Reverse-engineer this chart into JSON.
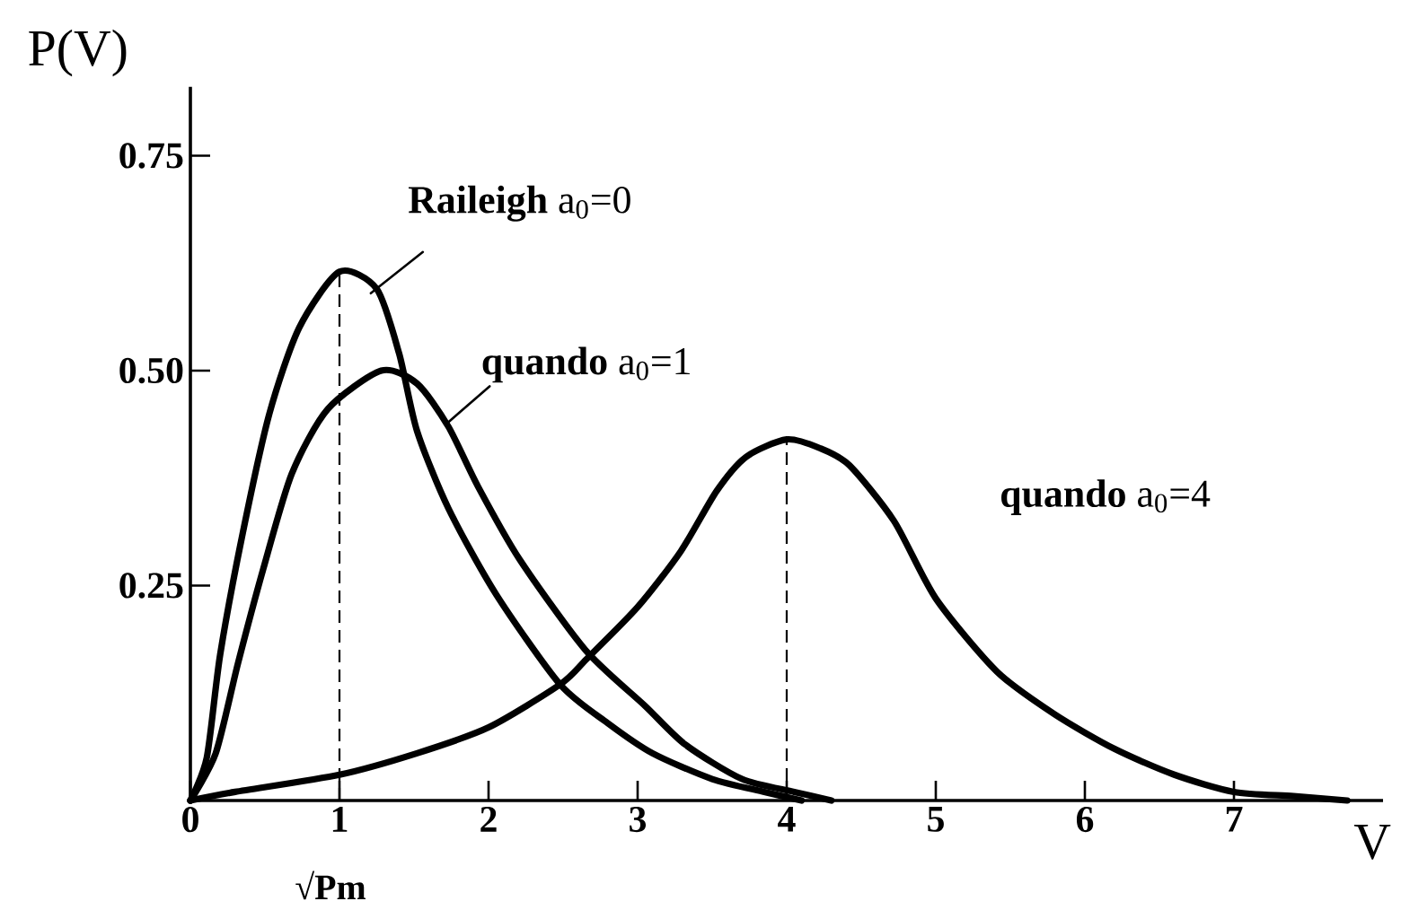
{
  "chart_data": {
    "type": "line",
    "xlabel": "V",
    "ylabel": "P(V)",
    "xlim": [
      0,
      8
    ],
    "ylim": [
      0,
      0.83
    ],
    "xticks": [
      0,
      1,
      2,
      3,
      4,
      5,
      6,
      7
    ],
    "yticks": [
      0.25,
      {
        "value": 0.5,
        "label": "0.50"
      },
      0.75
    ],
    "series": [
      {
        "color": "#000000",
        "x": [
          0,
          0.11,
          0.2,
          0.35,
          0.53,
          0.73,
          1,
          1.25,
          1.4,
          1.52,
          1.73,
          2.05,
          2.48,
          2.8,
          3.1,
          3.5,
          3.85,
          4.1
        ],
        "values": [
          0,
          0.05,
          0.17,
          0.31,
          0.45,
          0.55,
          0.615,
          0.595,
          0.52,
          0.43,
          0.34,
          0.24,
          0.135,
          0.09,
          0.055,
          0.025,
          0.01,
          0
        ]
      },
      {
        "color": "#000000",
        "x": [
          0,
          0.17,
          0.32,
          0.49,
          0.68,
          0.92,
          1.28,
          1.52,
          1.73,
          1.93,
          2.21,
          2.65,
          3.05,
          3.32,
          3.7,
          4.05,
          4.3
        ],
        "values": [
          0,
          0.055,
          0.16,
          0.27,
          0.38,
          0.455,
          0.5,
          0.485,
          0.435,
          0.365,
          0.28,
          0.175,
          0.11,
          0.065,
          0.025,
          0.01,
          0
        ]
      },
      {
        "color": "#000000",
        "x": [
          0,
          0.3,
          1,
          1.52,
          2,
          2.48,
          2.66,
          3,
          3.29,
          3.53,
          3.73,
          4,
          4.22,
          4.42,
          4.72,
          5,
          5.41,
          5.8,
          6.2,
          6.6,
          7,
          7.4,
          7.76
        ],
        "values": [
          0,
          0.01,
          0.03,
          0.055,
          0.085,
          0.135,
          0.165,
          0.225,
          0.29,
          0.36,
          0.4,
          0.42,
          0.41,
          0.39,
          0.325,
          0.235,
          0.15,
          0.1,
          0.06,
          0.03,
          0.01,
          0.005,
          0
        ]
      }
    ],
    "ref_lines": [
      {
        "axis": "x",
        "value": 1,
        "label": "√Pm",
        "line_style": "dashed"
      },
      {
        "axis": "x",
        "value": 4,
        "line_style": "dashed"
      }
    ],
    "annotations": [
      {
        "text": "**Raileigh** a$_{0}$=0",
        "x": 1.21,
        "y": 0.59
      },
      {
        "text": "**quando** a$_{0}$=1",
        "x": 1.73,
        "y": 0.44
      },
      "**quando** a$_{0}$=4"
    ]
  }
}
